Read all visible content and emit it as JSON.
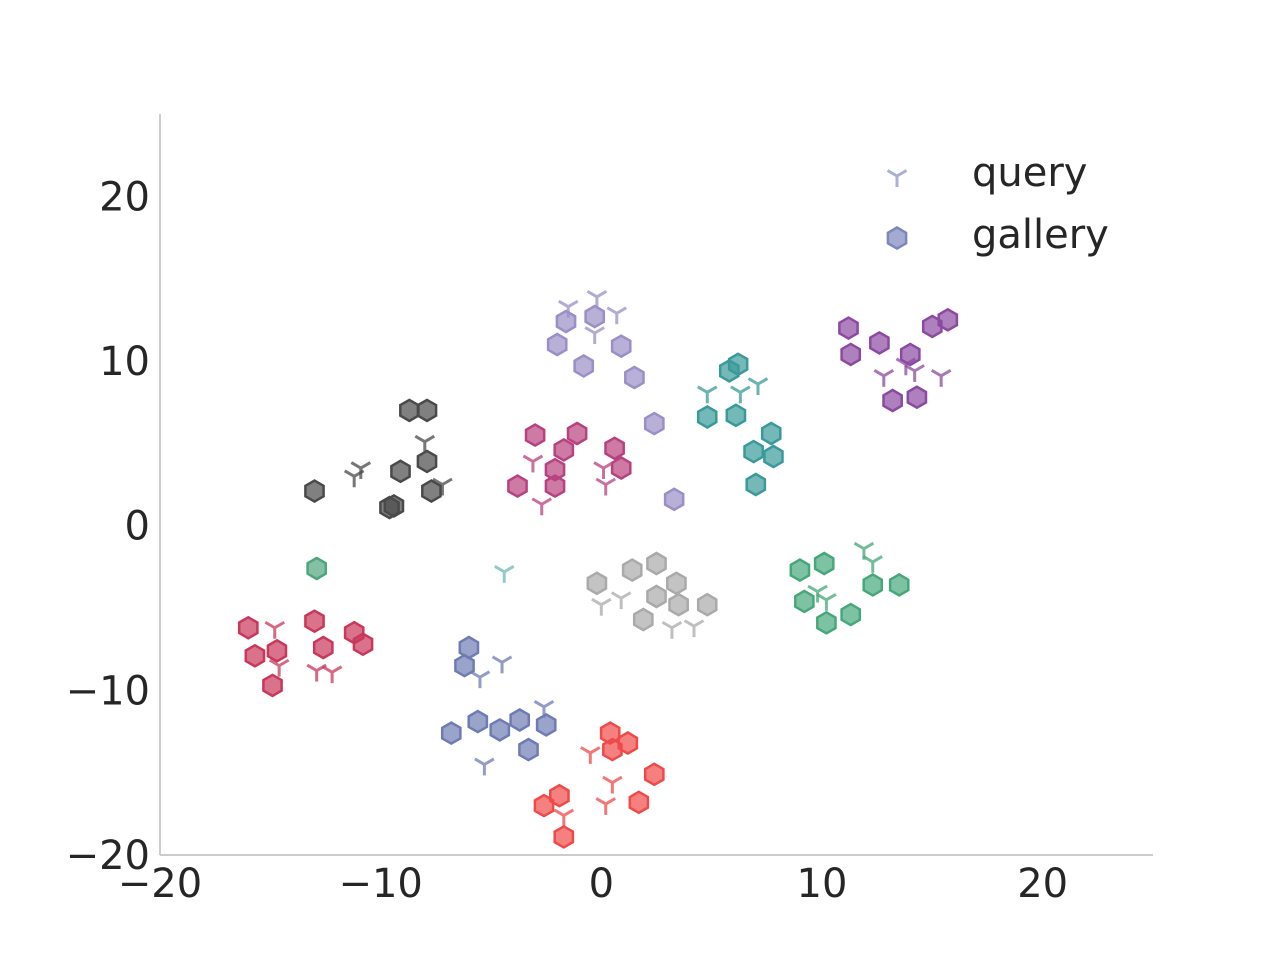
{
  "chart_data": {
    "type": "scatter",
    "title": "",
    "xlabel": "",
    "ylabel": "",
    "xlim": [
      -20,
      25
    ],
    "ylim": [
      -20,
      25
    ],
    "xticks": [
      -20,
      -10,
      0,
      10,
      20
    ],
    "yticks": [
      -20,
      -10,
      0,
      10,
      20
    ],
    "xtick_labels": [
      "−20",
      "−10",
      "0",
      "10",
      "20"
    ],
    "ytick_labels": [
      "−20",
      "−10",
      "0",
      "10",
      "20"
    ],
    "grid": false,
    "legend": {
      "placement": "top-right",
      "entries": [
        {
          "label": "query",
          "marker": "tri-down",
          "color": "#8f97c3"
        },
        {
          "label": "gallery",
          "marker": "hexagon",
          "color": "#7d87bd"
        }
      ]
    },
    "clusters": [
      {
        "color": "#9a8fc6",
        "query": [
          [
            -1.5,
            13.3
          ],
          [
            -0.2,
            13.9
          ],
          [
            0.7,
            12.9
          ],
          [
            -0.3,
            11.7
          ]
        ],
        "gallery": [
          [
            -1.6,
            12.4
          ],
          [
            -0.3,
            12.7
          ],
          [
            -2,
            11
          ],
          [
            0.9,
            10.9
          ],
          [
            -0.8,
            9.7
          ],
          [
            1.5,
            9
          ],
          [
            2.4,
            6.2
          ],
          [
            3.3,
            1.6
          ]
        ]
      },
      {
        "color": "#8b4aa1",
        "query": [
          [
            12.8,
            9.1
          ],
          [
            13.8,
            9.8
          ],
          [
            14.2,
            9.4
          ],
          [
            15.4,
            9.1
          ]
        ],
        "gallery": [
          [
            11.2,
            12
          ],
          [
            12.6,
            11.1
          ],
          [
            11.3,
            10.4
          ],
          [
            14,
            10.4
          ],
          [
            15,
            12.1
          ],
          [
            15.7,
            12.5
          ],
          [
            13.2,
            7.6
          ],
          [
            14.3,
            7.8
          ]
        ]
      },
      {
        "color": "#3a9a9a",
        "query": [
          [
            4.8,
            8.1
          ],
          [
            6.3,
            8.1
          ],
          [
            7.1,
            8.6
          ]
        ],
        "gallery": [
          [
            6.2,
            9.8
          ],
          [
            5.8,
            9.4
          ],
          [
            4.8,
            6.6
          ],
          [
            6.1,
            6.7
          ],
          [
            7.7,
            5.6
          ],
          [
            6.9,
            4.5
          ],
          [
            7.8,
            4.2
          ],
          [
            7,
            2.5
          ]
        ]
      },
      {
        "color": "#b8417f",
        "query": [
          [
            -3.1,
            3.9
          ],
          [
            0.1,
            3.5
          ],
          [
            0.2,
            2.5
          ],
          [
            -2.7,
            1.3
          ]
        ],
        "gallery": [
          [
            -3,
            5.5
          ],
          [
            -1.1,
            5.6
          ],
          [
            0.6,
            4.7
          ],
          [
            -1.7,
            4.6
          ],
          [
            -2.1,
            3.4
          ],
          [
            0.9,
            3.5
          ],
          [
            -3.8,
            2.4
          ],
          [
            -2.1,
            2.4
          ]
        ]
      },
      {
        "color": "#4a4a4a",
        "query": [
          [
            -8,
            5.1
          ],
          [
            -10.9,
            3.5
          ],
          [
            -11.2,
            3
          ],
          [
            -7.2,
            2.5
          ]
        ],
        "gallery": [
          [
            -8.7,
            7
          ],
          [
            -7.9,
            7
          ],
          [
            -9.1,
            3.3
          ],
          [
            -7.9,
            3.9
          ],
          [
            -13,
            2.1
          ],
          [
            -7.7,
            2.1
          ],
          [
            -9.4,
            1.2
          ],
          [
            -9.6,
            1.1
          ]
        ]
      },
      {
        "color": "#46a87a",
        "query": [
          [
            11.9,
            -1.4
          ],
          [
            12.3,
            -2.2
          ],
          [
            9.8,
            -4
          ],
          [
            10.2,
            -4.5
          ]
        ],
        "gallery": [
          [
            9,
            -2.7
          ],
          [
            10.1,
            -2.3
          ],
          [
            12.3,
            -3.6
          ],
          [
            13.5,
            -3.6
          ],
          [
            9.2,
            -4.6
          ],
          [
            11.3,
            -5.4
          ],
          [
            10.2,
            -5.9
          ]
        ]
      },
      {
        "color": "#aaaaaa",
        "query": [
          [
            0,
            -4.8
          ],
          [
            0.9,
            -4.4
          ],
          [
            3.2,
            -6.2
          ],
          [
            4.2,
            -6.1
          ]
        ],
        "gallery": [
          [
            -0.2,
            -3.5
          ],
          [
            1.4,
            -2.7
          ],
          [
            2.5,
            -2.3
          ],
          [
            3.4,
            -3.5
          ],
          [
            2.5,
            -4.3
          ],
          [
            3.5,
            -4.8
          ],
          [
            4.8,
            -4.8
          ],
          [
            1.9,
            -5.7
          ]
        ]
      },
      {
        "color": "#c9375a",
        "query": [
          [
            -14.8,
            -6.2
          ],
          [
            -12.9,
            -8.8
          ],
          [
            -12.2,
            -8.9
          ],
          [
            -14.6,
            -8.5
          ]
        ],
        "gallery": [
          [
            -16,
            -6.2
          ],
          [
            -13,
            -5.8
          ],
          [
            -11.2,
            -6.5
          ],
          [
            -10.8,
            -7.2
          ],
          [
            -15.7,
            -7.9
          ],
          [
            -14.7,
            -7.6
          ],
          [
            -12.6,
            -7.4
          ],
          [
            -14.9,
            -9.7
          ]
        ]
      },
      {
        "color": "#6f7cb4",
        "query": [
          [
            -4.5,
            -8.3
          ],
          [
            -5.5,
            -9.2
          ],
          [
            -2.6,
            -11
          ],
          [
            -5.3,
            -14.5
          ]
        ],
        "gallery": [
          [
            -6,
            -7.4
          ],
          [
            -6.2,
            -8.5
          ],
          [
            -5.6,
            -11.9
          ],
          [
            -3.7,
            -11.8
          ],
          [
            -4.6,
            -12.4
          ],
          [
            -2.5,
            -12.1
          ],
          [
            -6.8,
            -12.6
          ],
          [
            -3.3,
            -13.6
          ]
        ]
      },
      {
        "color": "#ef4a4a",
        "query": [
          [
            -0.5,
            -13.8
          ],
          [
            0.5,
            -15.6
          ],
          [
            0.2,
            -16.9
          ],
          [
            -1.7,
            -17.6
          ]
        ],
        "gallery": [
          [
            0.4,
            -12.6
          ],
          [
            1.2,
            -13.2
          ],
          [
            0.5,
            -13.6
          ],
          [
            2.4,
            -15.1
          ],
          [
            -1.9,
            -16.4
          ],
          [
            1.7,
            -16.8
          ],
          [
            -2.6,
            -17
          ],
          [
            -1.7,
            -18.9
          ]
        ]
      },
      {
        "color": "#6fb8b8",
        "query": [
          [
            -4.4,
            -2.8
          ]
        ],
        "gallery": []
      },
      {
        "color": "#4fa57d",
        "query": [],
        "gallery": [
          [
            -12.9,
            -2.6
          ]
        ]
      }
    ]
  }
}
